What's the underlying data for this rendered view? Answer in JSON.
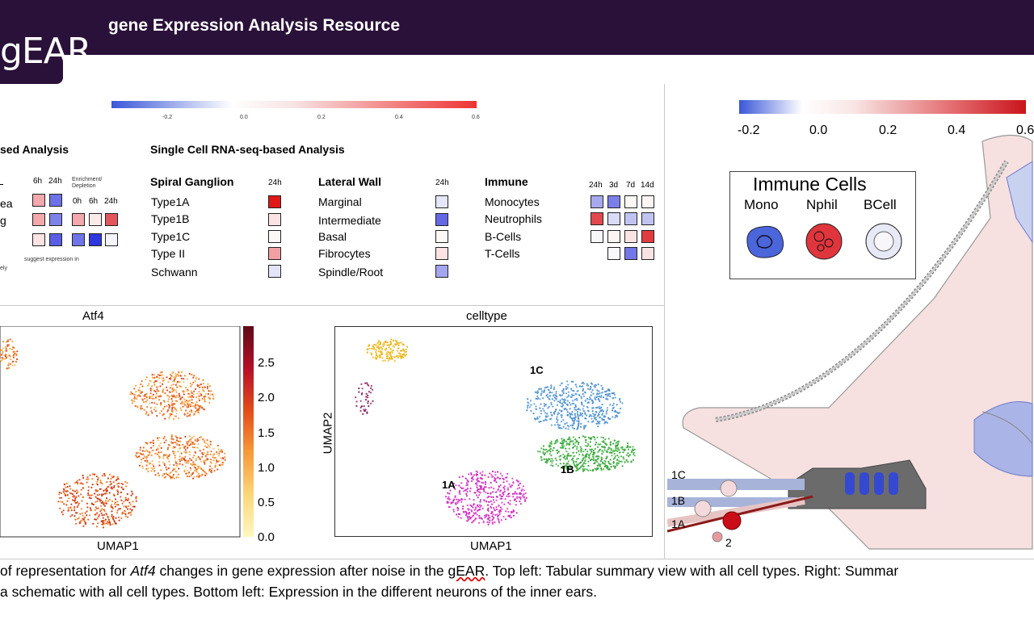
{
  "header": {
    "logo_text": "gEAR",
    "title": "gene Expression Analysis Resource",
    "bg_color": "#2a1139"
  },
  "top_scale": {
    "ticks": [
      "-0.2",
      "0.0",
      "0.2",
      "0.4",
      "0.6"
    ]
  },
  "left_section": {
    "title_partial": "sed Analysis",
    "rows_partial": [
      "ea",
      "g"
    ],
    "col_headers": [
      "6h",
      "24h"
    ],
    "enrichment_label": "Enrichment/ Depletion",
    "enrichment_cols": [
      "0h",
      "6h",
      "24h"
    ],
    "footnote": [
      "suggest expression in",
      "ely"
    ]
  },
  "single_cell": {
    "title": "Single Cell RNA-seq-based Analysis",
    "spiral": {
      "title": "Spiral Ganglion",
      "col": "24h",
      "items": [
        "Type1A",
        "Type1B",
        "Type1C",
        "Type II",
        "Schwann"
      ]
    },
    "lateral": {
      "title": "Lateral Wall",
      "col": "24h",
      "items": [
        "Marginal",
        "Intermediate",
        "Basal",
        "Fibrocytes",
        "Spindle/Root"
      ]
    },
    "immune": {
      "title": "Immune",
      "cols": [
        "24h",
        "3d",
        "7d",
        "14d"
      ],
      "items": [
        "Monocytes",
        "Neutrophils",
        "B-Cells",
        "T-Cells"
      ]
    }
  },
  "umap_left": {
    "title": "Atf4",
    "xlabel": "UMAP1",
    "colorbar_ticks": [
      "2.5",
      "2.0",
      "1.5",
      "1.0",
      "0.5",
      "0.0"
    ]
  },
  "umap_right": {
    "title": "celltype",
    "xlabel": "UMAP1",
    "ylabel": "UMAP2",
    "cluster_labels": [
      "1C",
      "1B",
      "1A"
    ]
  },
  "right_panel": {
    "scale_ticks": [
      "-0.2",
      "0.0",
      "0.2",
      "0.4",
      "0.6"
    ],
    "legend_title": "Immune Cells",
    "legend_items": [
      "Mono",
      "Nphil",
      "BCell"
    ],
    "schematic_labels": [
      "1C",
      "1B",
      "1A",
      "2"
    ]
  },
  "caption": {
    "line1_pre": "of representation for ",
    "line1_gene": "Atf4",
    "line1_mid": " changes in gene expression after noise in the ",
    "line1_gear": "gEAR",
    "line1_post": ". Top left: Tabular summary view with all cell types. Right: Summar",
    "line2": "a schematic with all cell types. Bottom left: Expression in the different neurons of the inner ears."
  }
}
